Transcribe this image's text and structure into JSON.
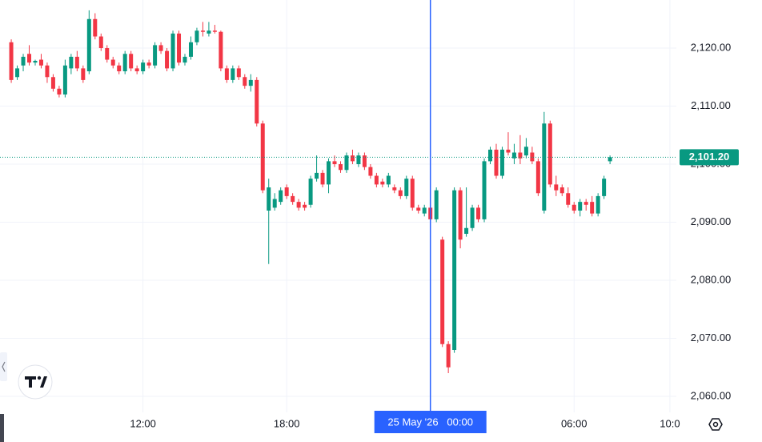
{
  "chart_data": {
    "type": "candlestick",
    "x": [
      6.5,
      6.75,
      7,
      7.25,
      7.5,
      7.75,
      8,
      8.25,
      8.5,
      8.75,
      9,
      9.25,
      9.5,
      9.75,
      10,
      10.25,
      10.5,
      10.75,
      11,
      11.25,
      11.5,
      11.75,
      12,
      12.25,
      12.5,
      12.75,
      13,
      13.25,
      13.5,
      13.75,
      14,
      14.25,
      14.5,
      14.75,
      15,
      15.25,
      15.5,
      15.75,
      16,
      16.25,
      16.5,
      16.75,
      17,
      17.25,
      17.5,
      17.75,
      18,
      18.25,
      18.5,
      18.75,
      19,
      19.25,
      19.5,
      19.75,
      20,
      20.25,
      20.5,
      20.75,
      21,
      21.25,
      21.5,
      21.75,
      22,
      22.25,
      22.5,
      22.75,
      23,
      23.25,
      23.5,
      23.75,
      24,
      24.25,
      24.5,
      24.75,
      25,
      25.25,
      25.5,
      25.75,
      26,
      26.25,
      26.5,
      26.75,
      27,
      27.25,
      27.5,
      27.75,
      28,
      28.25,
      28.5,
      28.75,
      29,
      29.25,
      29.5,
      29.75,
      30,
      30.25,
      30.5,
      30.75,
      31,
      31.25,
      31.5
    ],
    "open": [
      2121,
      2115,
      2117,
      2119,
      2117.5,
      2118,
      2117,
      2115,
      2113,
      2112,
      2116.5,
      2118.5,
      2116.5,
      2116,
      2125,
      2122,
      2120,
      2118,
      2117,
      2116,
      2119,
      2116.5,
      2116,
      2117.5,
      2117,
      2120.5,
      2119.5,
      2116.5,
      2122.5,
      2117.5,
      2118.5,
      2121,
      2123,
      2122.5,
      2123,
      2122.8,
      2116.5,
      2114.5,
      2116.5,
      2115,
      2113.5,
      2114.5,
      2107,
      2092,
      2092.5,
      2093.5,
      2096,
      2094.5,
      2093.5,
      2093,
      2093,
      2097.5,
      2098.5,
      2096.5,
      2100.5,
      2100,
      2099,
      2101.5,
      2100,
      2101.5,
      2099.5,
      2098,
      2097,
      2096.5,
      2096,
      2095.5,
      2094.5,
      2097.5,
      2092.5,
      2091.5,
      2092.5,
      2090.5,
      2087,
      2069,
      2068,
      2095.5,
      2088,
      2089,
      2092.5,
      2090.5,
      2100.5,
      2102.5,
      2098,
      2102.5,
      2101,
      2102,
      2101.5,
      2102,
      2100.5,
      2092,
      2107,
      2096.5,
      2096,
      2095,
      2093,
      2092,
      2093.5,
      2093.5,
      2091.5,
      2094.5,
      2100.5
    ],
    "high": [
      2121.5,
      2117,
      2119,
      2120.5,
      2118,
      2119,
      2117.5,
      2115.5,
      2113.5,
      2118,
      2119,
      2119.5,
      2117,
      2126.5,
      2126,
      2122.5,
      2120.5,
      2118.5,
      2117.5,
      2119.5,
      2119.5,
      2117,
      2118,
      2118,
      2121,
      2121,
      2120,
      2123,
      2123,
      2119,
      2122,
      2123.5,
      2124.5,
      2124.5,
      2124,
      2123,
      2117,
      2117,
      2117,
      2115.5,
      2115.5,
      2115,
      2107.5,
      2097.5,
      2095,
      2096,
      2096.5,
      2095,
      2094,
      2093.5,
      2098,
      2101.5,
      2099,
      2101,
      2101.5,
      2100.5,
      2102,
      2102.5,
      2102,
      2102,
      2100,
      2098.5,
      2097.5,
      2098.5,
      2096.5,
      2096,
      2098,
      2098,
      2093,
      2093,
      2093,
      2096,
      2087.5,
      2069.5,
      2096,
      2096,
      2096,
      2093,
      2093,
      2101,
      2103,
      2103.5,
      2103,
      2105.5,
      2103.5,
      2105,
      2104.5,
      2103,
      2101,
      2109,
      2107.5,
      2098,
      2096.5,
      2096,
      2093.5,
      2094,
      2094,
      2094.5,
      2095,
      2098,
      2101.5
    ],
    "low": [
      2114,
      2114.5,
      2116,
      2117,
      2117,
      2116.5,
      2114,
      2112.5,
      2111.5,
      2111.5,
      2115.5,
      2116,
      2114,
      2115.5,
      2121.5,
      2119.5,
      2117.5,
      2116.5,
      2115.5,
      2115.5,
      2116,
      2115.5,
      2115.5,
      2116.5,
      2116.5,
      2119,
      2116,
      2116,
      2117,
      2117,
      2118,
      2120.5,
      2122,
      2122,
      2122.5,
      2116,
      2114,
      2114,
      2114.5,
      2113,
      2112.5,
      2106.5,
      2095,
      2082.8,
      2092,
      2093,
      2094,
      2093,
      2092,
      2092,
      2092.5,
      2097,
      2096,
      2095,
      2099.5,
      2098.5,
      2098.5,
      2100,
      2099.5,
      2099,
      2097.5,
      2096,
      2096,
      2096,
      2095,
      2094,
      2094,
      2092,
      2091.5,
      2091,
      2090,
      2090,
      2068.5,
      2064,
      2067.5,
      2085.5,
      2087.5,
      2088.5,
      2090,
      2090,
      2100,
      2097.5,
      2097.5,
      2101.5,
      2100,
      2100,
      2101,
      2100,
      2094.5,
      2091.5,
      2096,
      2094.5,
      2094.5,
      2092.5,
      2091.5,
      2091,
      2092,
      2091,
      2091,
      2094,
      2100
    ],
    "close": [
      2114.5,
      2116.5,
      2118.5,
      2117.5,
      2117.8,
      2117,
      2115,
      2113,
      2112,
      2117,
      2118.5,
      2116.5,
      2114.5,
      2125,
      2122,
      2120,
      2118,
      2117,
      2116,
      2119,
      2116.5,
      2116,
      2117.5,
      2117,
      2120.5,
      2119.5,
      2116.5,
      2122.5,
      2117.5,
      2118.5,
      2121,
      2123,
      2122.8,
      2123,
      2122.8,
      2116.5,
      2114.5,
      2116.5,
      2115,
      2113.5,
      2114.5,
      2107,
      2095.5,
      2096,
      2094,
      2095.5,
      2094.5,
      2093.5,
      2092.5,
      2092.5,
      2097.5,
      2098.5,
      2096.5,
      2100.5,
      2100,
      2099,
      2101.5,
      2100.5,
      2101.5,
      2099.5,
      2098,
      2096.5,
      2096.5,
      2098,
      2095.5,
      2094.5,
      2097.5,
      2092.5,
      2092,
      2092.5,
      2090.5,
      2095.5,
      2069,
      2065,
      2095.5,
      2087,
      2089,
      2092.5,
      2090.5,
      2100.5,
      2102.5,
      2098,
      2102.5,
      2102,
      2102,
      2101,
      2103,
      2100.5,
      2095,
      2107,
      2096.5,
      2095.5,
      2095,
      2093,
      2092,
      2093.5,
      2093,
      2091.5,
      2094.5,
      2097.5,
      2101.2
    ],
    "up_color": "#089981",
    "down_color": "#f23645",
    "xlim": [
      6.03,
      34.27
    ],
    "xticks": [
      {
        "value": 12,
        "label": "12:00"
      },
      {
        "value": 18,
        "label": "18:00"
      },
      {
        "value": 30,
        "label": "06:00"
      },
      {
        "value": 34,
        "label": "10:0"
      }
    ],
    "ylim": [
      2057.24,
      2128.28
    ],
    "yticks": [
      {
        "value": 2060,
        "label": "2,060.00"
      },
      {
        "value": 2070,
        "label": "2,070.00"
      },
      {
        "value": 2080,
        "label": "2,080.00"
      },
      {
        "value": 2090,
        "label": "2,090.00"
      },
      {
        "value": 2100,
        "label": "2,100.00"
      },
      {
        "value": 2110,
        "label": "2,110.00"
      },
      {
        "value": 2120,
        "label": "2,120.00"
      }
    ],
    "grid": true,
    "crosshair": {
      "x": 24,
      "label": "25 May '26   00:00",
      "color": "#2962ff"
    },
    "last_price": {
      "value": 2101.2,
      "label": "2,101.20",
      "color": "#089981"
    }
  }
}
